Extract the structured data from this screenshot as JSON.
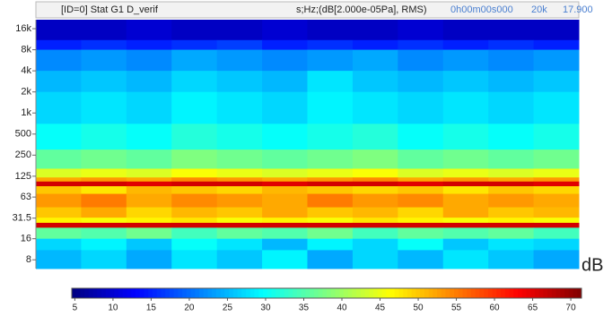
{
  "chart_data": {
    "type": "spectrogram",
    "title": "[ID=0] Stat G1 D_verif",
    "subtitle": "s;Hz;(dB[2.000e-05Pa], RMS)",
    "annotations": [
      "0h00m00s000",
      "20k",
      "17.900"
    ],
    "y_scale": "log",
    "ylim": [
      6,
      21500
    ],
    "yticks": [
      {
        "value": 16000,
        "label": "16k"
      },
      {
        "value": 8000,
        "label": "8k"
      },
      {
        "value": 4000,
        "label": "4k"
      },
      {
        "value": 2000,
        "label": "2k"
      },
      {
        "value": 1000,
        "label": "1k"
      },
      500,
      250,
      125,
      63,
      31.5,
      16,
      8
    ],
    "y_edges": [
      21500,
      11000,
      8000,
      4000,
      2000,
      700,
      300,
      160,
      120,
      105,
      90,
      70,
      45,
      32,
      27,
      23,
      16,
      11,
      6
    ],
    "values": [
      [
        9,
        9,
        10,
        9,
        9,
        10,
        9,
        9,
        10,
        9,
        9,
        9
      ],
      [
        15,
        16,
        15,
        16,
        17,
        15,
        16,
        15,
        16,
        15,
        16,
        15
      ],
      [
        22,
        23,
        22,
        24,
        23,
        22,
        23,
        24,
        22,
        23,
        22,
        23
      ],
      [
        25,
        26,
        25,
        27,
        26,
        25,
        28,
        26,
        25,
        26,
        25,
        26
      ],
      [
        27,
        28,
        27,
        29,
        28,
        27,
        29,
        28,
        27,
        28,
        27,
        28
      ],
      [
        30,
        31,
        30,
        32,
        31,
        30,
        31,
        32,
        30,
        31,
        30,
        31
      ],
      [
        36,
        37,
        36,
        38,
        37,
        36,
        37,
        38,
        36,
        37,
        36,
        37
      ],
      [
        44,
        45,
        44,
        46,
        45,
        44,
        45,
        46,
        44,
        45,
        44,
        45
      ],
      [
        52,
        53,
        52,
        54,
        53,
        52,
        53,
        54,
        52,
        53,
        52,
        53
      ],
      [
        66,
        66,
        65,
        66,
        66,
        65,
        66,
        66,
        65,
        66,
        66,
        65
      ],
      [
        50,
        48,
        51,
        50,
        49,
        51,
        50,
        49,
        50,
        48,
        50,
        49
      ],
      [
        53,
        55,
        52,
        54,
        53,
        52,
        55,
        53,
        54,
        52,
        53,
        52
      ],
      [
        50,
        52,
        49,
        51,
        50,
        52,
        50,
        51,
        49,
        52,
        50,
        51
      ],
      [
        47,
        46,
        47,
        48,
        46,
        47,
        46,
        48,
        47,
        46,
        47,
        46
      ],
      [
        66,
        66,
        66,
        66,
        66,
        66,
        66,
        66,
        66,
        66,
        66,
        66
      ],
      [
        36,
        35,
        37,
        34,
        36,
        35,
        37,
        34,
        36,
        35,
        36,
        34
      ],
      [
        27,
        29,
        26,
        30,
        28,
        25,
        29,
        27,
        30,
        26,
        28,
        27
      ],
      [
        25,
        27,
        24,
        28,
        26,
        29,
        24,
        27,
        25,
        28,
        26,
        24
      ]
    ],
    "colormap": "jet",
    "clim": [
      4.6,
      71.4
    ],
    "cticks": [
      5,
      10,
      15,
      20,
      25,
      30,
      35,
      40,
      45,
      50,
      55,
      60,
      65,
      70
    ],
    "colorbar_label": "dB"
  }
}
